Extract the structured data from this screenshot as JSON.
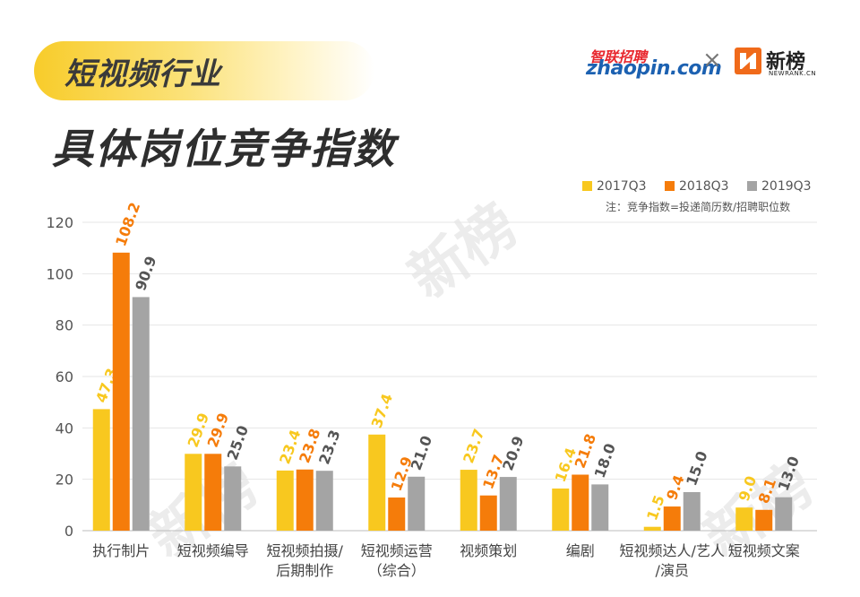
{
  "header": {
    "industry": "短视频行业",
    "title": "具体岗位竞争指数"
  },
  "logos": {
    "zhaopin_cn": "智联招聘",
    "zhaopin_en": "zhaopin.com",
    "cross": "×",
    "newrank_cn": "新榜",
    "newrank_en": "NEWRANK.CN"
  },
  "note": "注：竞争指数=投递简历数/招聘职位数",
  "colors": {
    "2017Q3": "#f8c81f",
    "2018Q3": "#f57c0a",
    "2019Q3": "#a4a4a4"
  },
  "chart_data": {
    "type": "bar",
    "categories": [
      [
        "执行制片"
      ],
      [
        "短视频编导"
      ],
      [
        "短视频拍摄/",
        "后期制作"
      ],
      [
        "短视频运营",
        "（综合）"
      ],
      [
        "视频策划"
      ],
      [
        "编剧"
      ],
      [
        "短视频达人/艺人",
        "/演员"
      ],
      [
        "短视频文案"
      ]
    ],
    "series": [
      {
        "name": "2017Q3",
        "values": [
          47.3,
          29.9,
          23.4,
          37.4,
          23.7,
          16.4,
          1.5,
          9.0
        ]
      },
      {
        "name": "2018Q3",
        "values": [
          108.2,
          29.9,
          23.8,
          12.9,
          13.7,
          21.8,
          9.4,
          8.1
        ]
      },
      {
        "name": "2019Q3",
        "values": [
          90.9,
          25.0,
          23.3,
          21.0,
          20.9,
          18.0,
          15.0,
          13.0
        ]
      }
    ],
    "yticks": [
      0,
      20,
      40,
      60,
      80,
      100,
      120
    ],
    "ylim": [
      0,
      120
    ],
    "grid": true,
    "legend_position": "top-right"
  }
}
